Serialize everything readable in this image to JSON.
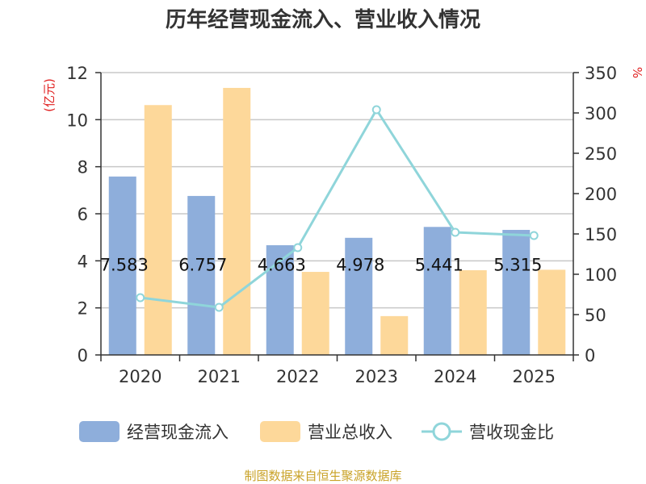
{
  "title": "历年经营现金流入、营业收入情况",
  "left_unit": "(亿元)",
  "right_unit": "%",
  "source": "制图数据来自恒生聚源数据库",
  "colors": {
    "cash_inflow": "#8eaedb",
    "revenue": "#fdd89a",
    "ratio": "#8fd5da",
    "grid": "#c8c8c8",
    "axis": "#333333"
  },
  "chart_data": {
    "type": "bar",
    "categories": [
      "2020",
      "2021",
      "2022",
      "2023",
      "2024",
      "2025"
    ],
    "series": [
      {
        "name": "经营现金流入",
        "axis": "left",
        "kind": "bar",
        "values": [
          7.583,
          6.757,
          4.663,
          4.978,
          5.441,
          5.315
        ],
        "data_labels": [
          "7.583",
          "6.757",
          "4.663",
          "4.978",
          "5.441",
          "5.315"
        ]
      },
      {
        "name": "营业总收入",
        "axis": "left",
        "kind": "bar",
        "values": [
          10.62,
          11.35,
          3.53,
          1.65,
          3.6,
          3.62
        ]
      },
      {
        "name": "营收现金比",
        "axis": "right",
        "kind": "line",
        "values": [
          71,
          59,
          133,
          304,
          152,
          148
        ]
      }
    ],
    "left_ylim": [
      0,
      12
    ],
    "left_ticks": [
      "0",
      "2",
      "4",
      "6",
      "8",
      "10",
      "12"
    ],
    "right_ylim": [
      0,
      350
    ],
    "right_ticks": [
      "0",
      "50",
      "100",
      "150",
      "200",
      "250",
      "300",
      "350"
    ],
    "grid": true,
    "legend_position": "bottom"
  }
}
